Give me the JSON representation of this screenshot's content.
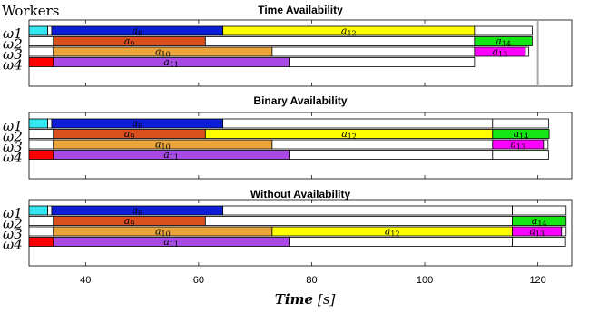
{
  "header_label": "Workers",
  "chart_data": {
    "type": "gantt",
    "xlabel": "Time [s]",
    "xlabel_main": "Time",
    "xlabel_unit": "[s]",
    "xlim": [
      30,
      126
    ],
    "xticks": [
      40,
      60,
      80,
      100,
      120
    ],
    "workers": [
      "ω1",
      "ω2",
      "ω3",
      "ω4"
    ],
    "colors": {
      "cyan": "#33e6f0",
      "blue": "#0d1ed8",
      "yellow": "#ffff00",
      "orange_red": "#d94f1e",
      "green": "#14e614",
      "orange": "#eba43a",
      "magenta": "#ff00ff",
      "red": "#ff0000",
      "purple": "#a94ae6",
      "white": "#ffffff"
    },
    "panels": [
      {
        "title": "Time Availability",
        "deadline": 120,
        "rows": [
          [
            {
              "start": 30,
              "end": 33.3,
              "color": "cyan",
              "label": ""
            },
            {
              "start": 33.3,
              "end": 34,
              "color": "white",
              "label": ""
            },
            {
              "start": 34,
              "end": 64.3,
              "color": "blue",
              "label": "a8"
            },
            {
              "start": 64.3,
              "end": 108.8,
              "color": "yellow",
              "label": "a12"
            },
            {
              "start": 108.8,
              "end": 119,
              "color": "white",
              "label": ""
            }
          ],
          [
            {
              "start": 30,
              "end": 34.3,
              "color": "white",
              "label": ""
            },
            {
              "start": 34.3,
              "end": 61.2,
              "color": "orange_red",
              "label": "a9"
            },
            {
              "start": 61.2,
              "end": 108.8,
              "color": "white",
              "label": ""
            },
            {
              "start": 108.8,
              "end": 119,
              "color": "green",
              "label": "a14"
            }
          ],
          [
            {
              "start": 30,
              "end": 34.3,
              "color": "white",
              "label": ""
            },
            {
              "start": 34.3,
              "end": 73,
              "color": "orange",
              "label": "a10"
            },
            {
              "start": 73,
              "end": 108.8,
              "color": "white",
              "label": ""
            },
            {
              "start": 108.8,
              "end": 117.8,
              "color": "magenta",
              "label": "a13"
            },
            {
              "start": 117.8,
              "end": 118.4,
              "color": "white",
              "label": ""
            }
          ],
          [
            {
              "start": 30,
              "end": 34.3,
              "color": "red",
              "label": ""
            },
            {
              "start": 34.3,
              "end": 76,
              "color": "purple",
              "label": "a11"
            },
            {
              "start": 76,
              "end": 108.8,
              "color": "white",
              "label": ""
            }
          ]
        ]
      },
      {
        "title": "Binary Availability",
        "deadline": null,
        "rows": [
          [
            {
              "start": 30,
              "end": 33.3,
              "color": "cyan",
              "label": ""
            },
            {
              "start": 33.3,
              "end": 34,
              "color": "white",
              "label": ""
            },
            {
              "start": 34,
              "end": 64.3,
              "color": "blue",
              "label": "a8"
            },
            {
              "start": 64.3,
              "end": 112,
              "color": "white",
              "label": ""
            },
            {
              "start": 112,
              "end": 121.9,
              "color": "white",
              "label": ""
            }
          ],
          [
            {
              "start": 30,
              "end": 34.3,
              "color": "white",
              "label": ""
            },
            {
              "start": 34.3,
              "end": 61.2,
              "color": "orange_red",
              "label": "a9"
            },
            {
              "start": 61.2,
              "end": 112,
              "color": "yellow",
              "label": "a12"
            },
            {
              "start": 112,
              "end": 122,
              "color": "green",
              "label": "a14"
            }
          ],
          [
            {
              "start": 30,
              "end": 34.3,
              "color": "white",
              "label": ""
            },
            {
              "start": 34.3,
              "end": 73,
              "color": "orange",
              "label": "a10"
            },
            {
              "start": 73,
              "end": 112,
              "color": "white",
              "label": ""
            },
            {
              "start": 112,
              "end": 121,
              "color": "magenta",
              "label": "a13"
            },
            {
              "start": 121,
              "end": 121.8,
              "color": "white",
              "label": ""
            }
          ],
          [
            {
              "start": 30,
              "end": 34.3,
              "color": "red",
              "label": ""
            },
            {
              "start": 34.3,
              "end": 76,
              "color": "purple",
              "label": "a11"
            },
            {
              "start": 76,
              "end": 112,
              "color": "white",
              "label": ""
            },
            {
              "start": 112,
              "end": 121.9,
              "color": "white",
              "label": ""
            }
          ]
        ]
      },
      {
        "title": "Without Availability",
        "deadline": null,
        "rows": [
          [
            {
              "start": 30,
              "end": 33.3,
              "color": "cyan",
              "label": ""
            },
            {
              "start": 33.3,
              "end": 34,
              "color": "white",
              "label": ""
            },
            {
              "start": 34,
              "end": 64.3,
              "color": "blue",
              "label": "a8"
            },
            {
              "start": 64.3,
              "end": 115.5,
              "color": "white",
              "label": ""
            },
            {
              "start": 115.5,
              "end": 125,
              "color": "white",
              "label": ""
            }
          ],
          [
            {
              "start": 30,
              "end": 34.3,
              "color": "white",
              "label": ""
            },
            {
              "start": 34.3,
              "end": 61.2,
              "color": "orange_red",
              "label": "a9"
            },
            {
              "start": 61.2,
              "end": 115.5,
              "color": "white",
              "label": ""
            },
            {
              "start": 115.5,
              "end": 125,
              "color": "green",
              "label": "a14"
            }
          ],
          [
            {
              "start": 30,
              "end": 34.3,
              "color": "white",
              "label": ""
            },
            {
              "start": 34.3,
              "end": 73,
              "color": "orange",
              "label": "a10"
            },
            {
              "start": 73,
              "end": 115.5,
              "color": "yellow",
              "label": "a12"
            },
            {
              "start": 115.5,
              "end": 124.2,
              "color": "magenta",
              "label": "a13"
            },
            {
              "start": 124.2,
              "end": 125,
              "color": "white",
              "label": ""
            }
          ],
          [
            {
              "start": 30,
              "end": 34.3,
              "color": "red",
              "label": ""
            },
            {
              "start": 34.3,
              "end": 76,
              "color": "purple",
              "label": "a11"
            },
            {
              "start": 76,
              "end": 115.5,
              "color": "white",
              "label": ""
            },
            {
              "start": 115.5,
              "end": 124.9,
              "color": "white",
              "label": ""
            }
          ]
        ]
      }
    ]
  }
}
